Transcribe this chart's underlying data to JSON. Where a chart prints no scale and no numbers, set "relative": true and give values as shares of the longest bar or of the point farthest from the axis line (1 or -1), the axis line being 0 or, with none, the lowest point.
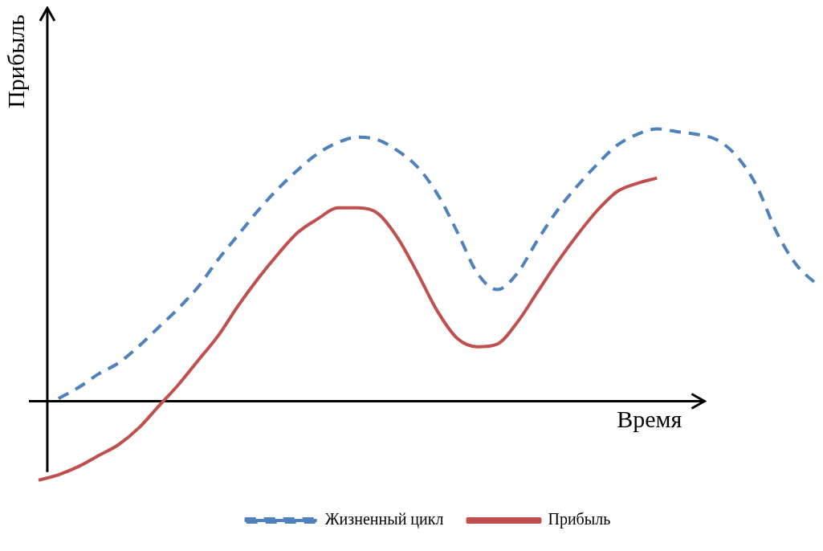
{
  "chart_data": {
    "type": "line",
    "relative": true,
    "xlabel": "Время",
    "ylabel": "Прибыль",
    "legend": "bottom",
    "categories": [
      null,
      null,
      null,
      null,
      null,
      null,
      null,
      null,
      null,
      null,
      null,
      null,
      null,
      null,
      null,
      null,
      null,
      null,
      null,
      null,
      null,
      null,
      null,
      null,
      null,
      null,
      null,
      null,
      null,
      null,
      null,
      null,
      null,
      null,
      null,
      null,
      null,
      null,
      null,
      null
    ],
    "series": [
      {
        "name": "Жизненный цикл",
        "color": "#4f81bd",
        "line_style": "dashed",
        "values": [
          null,
          0.01,
          0.05,
          0.1,
          0.14,
          0.2,
          0.27,
          0.34,
          0.42,
          0.52,
          0.61,
          0.7,
          0.78,
          0.85,
          0.91,
          0.95,
          0.97,
          0.96,
          0.92,
          0.86,
          0.76,
          0.62,
          0.47,
          0.41,
          0.47,
          0.59,
          0.7,
          0.79,
          0.87,
          0.94,
          0.98,
          1.0,
          0.99,
          0.98,
          0.96,
          0.9,
          0.79,
          0.62,
          0.5,
          0.43
        ]
      },
      {
        "name": "Прибыль",
        "color": "#c0504d",
        "line_style": "solid",
        "values": [
          -0.29,
          -0.27,
          -0.24,
          -0.2,
          -0.16,
          -0.1,
          -0.02,
          0.06,
          0.15,
          0.24,
          0.35,
          0.45,
          0.54,
          0.62,
          0.67,
          0.71,
          0.71,
          0.69,
          0.6,
          0.47,
          0.33,
          0.23,
          0.2,
          0.21,
          0.29,
          0.4,
          0.51,
          0.61,
          0.7,
          0.77,
          0.8,
          0.82,
          null,
          null,
          null,
          null,
          null,
          null,
          null,
          null
        ]
      }
    ]
  }
}
